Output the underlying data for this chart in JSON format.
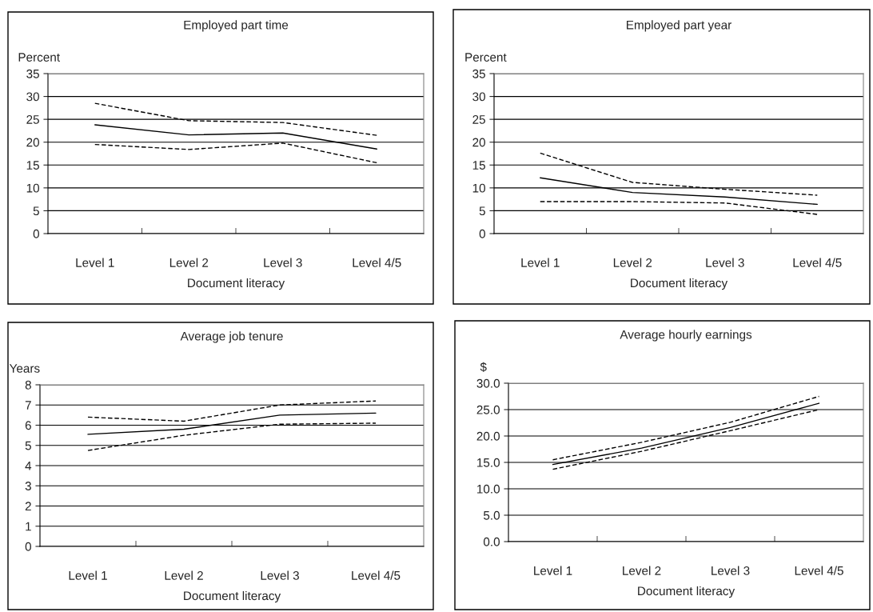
{
  "chart_data": [
    {
      "type": "line",
      "title": "Employed part time",
      "ylabel": "Percent",
      "xlabel": "Document literacy",
      "categories": [
        "Level 1",
        "Level 2",
        "Level 3",
        "Level 4/5"
      ],
      "ylim": [
        0,
        35
      ],
      "yticks": [
        0,
        5,
        10,
        15,
        20,
        25,
        30,
        35
      ],
      "grid": "y",
      "legend": false,
      "series": [
        {
          "color": "#000000",
          "line_style": "dashed",
          "values": [
            28.5,
            24.7,
            24.3,
            21.5
          ]
        },
        {
          "color": "#000000",
          "line_style": "solid",
          "values": [
            23.8,
            21.6,
            22.0,
            18.5
          ]
        },
        {
          "color": "#000000",
          "line_style": "dashed",
          "values": [
            19.5,
            18.4,
            19.8,
            15.5
          ]
        }
      ]
    },
    {
      "type": "line",
      "title": "Employed part year",
      "ylabel": "Percent",
      "xlabel": "Document literacy",
      "categories": [
        "Level 1",
        "Level 2",
        "Level 3",
        "Level 4/5"
      ],
      "ylim": [
        0,
        35
      ],
      "yticks": [
        0,
        5,
        10,
        15,
        20,
        25,
        30,
        35
      ],
      "grid": "y",
      "legend": false,
      "series": [
        {
          "color": "#000000",
          "line_style": "dashed",
          "values": [
            17.6,
            11.2,
            9.7,
            8.4
          ]
        },
        {
          "color": "#000000",
          "line_style": "solid",
          "values": [
            12.2,
            9.0,
            8.0,
            6.4
          ]
        },
        {
          "color": "#000000",
          "line_style": "dashed",
          "values": [
            7.0,
            7.0,
            6.7,
            4.2
          ]
        }
      ]
    },
    {
      "type": "line",
      "title": "Average job tenure",
      "ylabel": "Years",
      "xlabel": "Document literacy",
      "categories": [
        "Level 1",
        "Level 2",
        "Level 3",
        "Level 4/5"
      ],
      "ylim": [
        0,
        8
      ],
      "yticks": [
        0,
        1,
        2,
        3,
        4,
        5,
        6,
        7,
        8
      ],
      "grid": "y",
      "legend": false,
      "series": [
        {
          "color": "#000000",
          "line_style": "dashed",
          "values": [
            6.4,
            6.2,
            7.0,
            7.2
          ]
        },
        {
          "color": "#000000",
          "line_style": "solid",
          "values": [
            5.55,
            5.8,
            6.5,
            6.6
          ]
        },
        {
          "color": "#000000",
          "line_style": "dashed",
          "values": [
            4.75,
            5.5,
            6.05,
            6.1
          ]
        }
      ]
    },
    {
      "type": "line",
      "title": "Average hourly earnings",
      "ylabel": "$",
      "xlabel": "Document literacy",
      "categories": [
        "Level 1",
        "Level 2",
        "Level 3",
        "Level 4/5"
      ],
      "ylim": [
        0,
        30
      ],
      "yticks": [
        {
          "value": 0,
          "label": "0.0"
        },
        {
          "value": 5,
          "label": "5.0"
        },
        {
          "value": 10,
          "label": "10.0"
        },
        {
          "value": 15,
          "label": "15.0"
        },
        {
          "value": 20,
          "label": "20.0"
        },
        {
          "value": 25,
          "label": "25.0"
        },
        {
          "value": 30,
          "label": "30.0"
        }
      ],
      "grid": "y",
      "legend": false,
      "series": [
        {
          "color": "#000000",
          "line_style": "dashed",
          "values": [
            15.5,
            18.8,
            22.6,
            27.5
          ]
        },
        {
          "color": "#000000",
          "line_style": "solid",
          "values": [
            14.6,
            17.7,
            21.6,
            26.2
          ]
        },
        {
          "color": "#000000",
          "line_style": "dashed",
          "values": [
            13.7,
            17.1,
            21.0,
            25.0
          ]
        }
      ]
    }
  ]
}
